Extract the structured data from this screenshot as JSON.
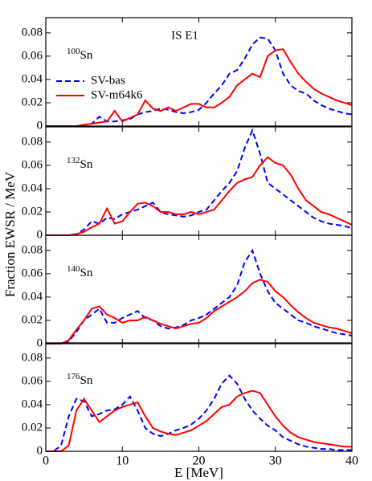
{
  "ylabel": "Fraction EWSR / MeV",
  "chart_data": [
    {
      "type": "line",
      "title": "IS E1",
      "annotation": {
        "mass": "100",
        "symbol": "Sn"
      },
      "legend": "upper left",
      "x": [
        0,
        1,
        2,
        3,
        4,
        5,
        6,
        7,
        8,
        9,
        10,
        11,
        12,
        13,
        14,
        15,
        16,
        17,
        18,
        19,
        20,
        21,
        22,
        23,
        24,
        25,
        26,
        27,
        28,
        29,
        30,
        31,
        32,
        33,
        34,
        35,
        36,
        37,
        38,
        39,
        40
      ],
      "xlim": [
        0,
        40
      ],
      "xticks": [
        0,
        10,
        20,
        30,
        40
      ],
      "ylim": [
        0,
        0.093
      ],
      "yticks": [
        0,
        0.02,
        0.04,
        0.06,
        0.08
      ],
      "series": [
        {
          "name": "SV-bas",
          "color": "#0000ff",
          "dash": "dashed",
          "values": [
            0,
            0,
            0,
            0,
            0,
            0.001,
            0.002,
            0.008,
            0.004,
            0.004,
            0.005,
            0.006,
            0.01,
            0.012,
            0.013,
            0.015,
            0.014,
            0.012,
            0.011,
            0.012,
            0.014,
            0.02,
            0.028,
            0.035,
            0.045,
            0.048,
            0.058,
            0.07,
            0.076,
            0.075,
            0.065,
            0.045,
            0.035,
            0.03,
            0.028,
            0.022,
            0.018,
            0.015,
            0.013,
            0.011,
            0.01
          ]
        },
        {
          "name": "SV-m64k6",
          "color": "#ff0000",
          "dash": "solid",
          "values": [
            0,
            0,
            0,
            0,
            0,
            0.001,
            0.002,
            0.003,
            0.004,
            0.013,
            0.004,
            0.007,
            0.01,
            0.022,
            0.015,
            0.013,
            0.016,
            0.013,
            0.016,
            0.019,
            0.019,
            0.016,
            0.016,
            0.02,
            0.025,
            0.035,
            0.04,
            0.045,
            0.042,
            0.06,
            0.065,
            0.066,
            0.055,
            0.045,
            0.038,
            0.032,
            0.028,
            0.025,
            0.022,
            0.02,
            0.018
          ]
        }
      ]
    },
    {
      "type": "line",
      "annotation": {
        "mass": "132",
        "symbol": "Sn"
      },
      "x": [
        0,
        1,
        2,
        3,
        4,
        5,
        6,
        7,
        8,
        9,
        10,
        11,
        12,
        13,
        14,
        15,
        16,
        17,
        18,
        19,
        20,
        21,
        22,
        23,
        24,
        25,
        26,
        27,
        28,
        29,
        30,
        31,
        32,
        33,
        34,
        35,
        36,
        37,
        38,
        39,
        40
      ],
      "xlim": [
        0,
        40
      ],
      "xticks": [
        0,
        10,
        20,
        30,
        40
      ],
      "ylim": [
        0,
        0.093
      ],
      "yticks": [
        0,
        0.02,
        0.04,
        0.06,
        0.08
      ],
      "series": [
        {
          "color": "#0000ff",
          "dash": "dashed",
          "values": [
            0,
            0,
            0,
            0,
            0.001,
            0.005,
            0.012,
            0.01,
            0.015,
            0.014,
            0.018,
            0.02,
            0.022,
            0.025,
            0.028,
            0.02,
            0.018,
            0.017,
            0.016,
            0.017,
            0.02,
            0.022,
            0.03,
            0.038,
            0.045,
            0.055,
            0.075,
            0.09,
            0.07,
            0.045,
            0.04,
            0.035,
            0.03,
            0.025,
            0.02,
            0.015,
            0.012,
            0.01,
            0.009,
            0.008,
            0.006
          ]
        },
        {
          "color": "#ff0000",
          "dash": "solid",
          "values": [
            0,
            0,
            0,
            0,
            0.001,
            0.003,
            0.007,
            0.01,
            0.023,
            0.01,
            0.012,
            0.02,
            0.027,
            0.028,
            0.025,
            0.02,
            0.02,
            0.018,
            0.018,
            0.02,
            0.018,
            0.02,
            0.022,
            0.03,
            0.038,
            0.045,
            0.048,
            0.05,
            0.06,
            0.067,
            0.062,
            0.06,
            0.052,
            0.04,
            0.03,
            0.025,
            0.02,
            0.018,
            0.015,
            0.012,
            0.009
          ]
        }
      ]
    },
    {
      "type": "line",
      "annotation": {
        "mass": "140",
        "symbol": "Sn"
      },
      "x": [
        0,
        1,
        2,
        3,
        4,
        5,
        6,
        7,
        8,
        9,
        10,
        11,
        12,
        13,
        14,
        15,
        16,
        17,
        18,
        19,
        20,
        21,
        22,
        23,
        24,
        25,
        26,
        27,
        28,
        29,
        30,
        31,
        32,
        33,
        34,
        35,
        36,
        37,
        38,
        39,
        40
      ],
      "xlim": [
        0,
        40
      ],
      "xticks": [
        0,
        10,
        20,
        30,
        40
      ],
      "ylim": [
        0,
        0.093
      ],
      "yticks": [
        0,
        0.02,
        0.04,
        0.06,
        0.08
      ],
      "series": [
        {
          "color": "#0000ff",
          "dash": "dashed",
          "values": [
            0,
            0,
            0,
            0.002,
            0.01,
            0.02,
            0.025,
            0.03,
            0.018,
            0.018,
            0.022,
            0.025,
            0.028,
            0.022,
            0.02,
            0.015,
            0.013,
            0.014,
            0.016,
            0.02,
            0.022,
            0.025,
            0.03,
            0.035,
            0.04,
            0.05,
            0.07,
            0.08,
            0.06,
            0.045,
            0.035,
            0.03,
            0.025,
            0.02,
            0.018,
            0.015,
            0.013,
            0.011,
            0.009,
            0.008,
            0.007
          ]
        },
        {
          "color": "#ff0000",
          "dash": "solid",
          "values": [
            0,
            0,
            0,
            0.003,
            0.012,
            0.02,
            0.03,
            0.032,
            0.025,
            0.022,
            0.018,
            0.02,
            0.02,
            0.023,
            0.02,
            0.017,
            0.015,
            0.013,
            0.015,
            0.017,
            0.018,
            0.022,
            0.028,
            0.032,
            0.036,
            0.04,
            0.045,
            0.052,
            0.055,
            0.053,
            0.045,
            0.04,
            0.033,
            0.027,
            0.022,
            0.018,
            0.016,
            0.014,
            0.013,
            0.011,
            0.009
          ]
        }
      ]
    },
    {
      "type": "line",
      "annotation": {
        "mass": "176",
        "symbol": "Sn"
      },
      "xlabel": "E [MeV]",
      "x": [
        0,
        1,
        2,
        3,
        4,
        5,
        6,
        7,
        8,
        9,
        10,
        11,
        12,
        13,
        14,
        15,
        16,
        17,
        18,
        19,
        20,
        21,
        22,
        23,
        24,
        25,
        26,
        27,
        28,
        29,
        30,
        31,
        32,
        33,
        34,
        35,
        36,
        37,
        38,
        39,
        40
      ],
      "xlim": [
        0,
        40
      ],
      "xticks": [
        0,
        10,
        20,
        30,
        40
      ],
      "ylim": [
        0,
        0.093
      ],
      "yticks": [
        0,
        0.02,
        0.04,
        0.06,
        0.08
      ],
      "series": [
        {
          "color": "#0000ff",
          "dash": "dashed",
          "values": [
            0,
            0,
            0.005,
            0.03,
            0.045,
            0.043,
            0.03,
            0.032,
            0.035,
            0.036,
            0.04,
            0.047,
            0.035,
            0.02,
            0.015,
            0.013,
            0.015,
            0.018,
            0.02,
            0.023,
            0.028,
            0.035,
            0.045,
            0.058,
            0.065,
            0.058,
            0.045,
            0.035,
            0.028,
            0.022,
            0.018,
            0.012,
            0.009,
            0.006,
            0.004,
            0.003,
            0.002,
            0.002,
            0.001,
            0.001,
            0.001
          ]
        },
        {
          "color": "#ff0000",
          "dash": "solid",
          "values": [
            0,
            0,
            0,
            0.005,
            0.035,
            0.045,
            0.035,
            0.025,
            0.03,
            0.035,
            0.038,
            0.04,
            0.042,
            0.03,
            0.02,
            0.017,
            0.015,
            0.014,
            0.016,
            0.018,
            0.022,
            0.026,
            0.032,
            0.038,
            0.04,
            0.047,
            0.05,
            0.052,
            0.05,
            0.04,
            0.03,
            0.022,
            0.016,
            0.012,
            0.01,
            0.008,
            0.007,
            0.006,
            0.005,
            0.004,
            0.004
          ]
        }
      ]
    }
  ]
}
